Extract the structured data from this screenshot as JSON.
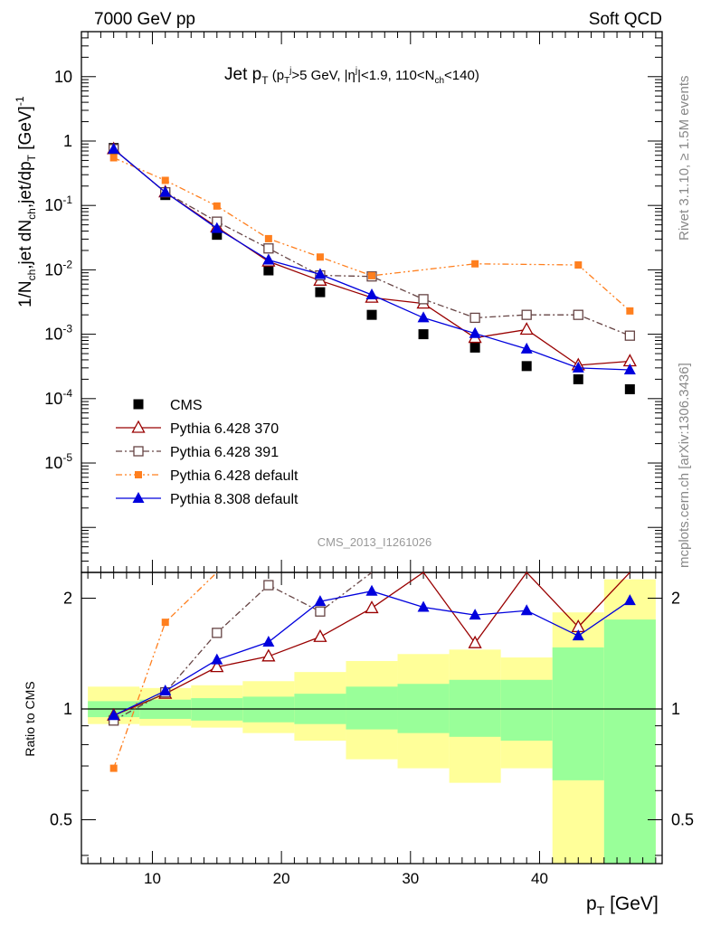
{
  "header": {
    "left": "7000 GeV pp",
    "right": "Soft QCD",
    "analysis_id": "CMS_2013_I1261026",
    "side_text_1": "Rivet 3.1.10, ≥ 1.5M events",
    "side_text_2": "mcplots.cern.ch [arXiv:1306.3436]"
  },
  "colors": {
    "cms": "#000000",
    "pythia6_370": "#990000",
    "pythia6_391": "#664444",
    "pythia6_default": "#ff7f1e",
    "pythia8_default": "#0000dd",
    "band_inner": "#99ff99",
    "band_outer": "#ffff99"
  },
  "chart_data": [
    {
      "type": "scatter",
      "panel": "main",
      "title": "Jet p_T (p_T^j > 5 GeV, |η^j| < 1.9, 110 < N_ch < 140)",
      "ylabel": "1/N_ch,jet dN_ch,jet/dp_T [GeV]^-1",
      "yscale": "log",
      "xlim": [
        4.5,
        49.5
      ],
      "ylim": [
        2e-07,
        50
      ],
      "y_tick_labels": [
        "10",
        "1",
        "10^-1",
        "10^-2",
        "10^-3",
        "10^-4",
        "10^-5"
      ],
      "legend_position": "lower-left",
      "x": [
        7,
        11,
        15,
        19,
        23,
        27,
        31,
        35,
        39,
        43,
        47
      ],
      "series": [
        {
          "name": "CMS",
          "key": "cms",
          "marker": "filled-square",
          "line": "none",
          "values": [
            0.78,
            0.145,
            0.035,
            0.0098,
            0.0045,
            0.002,
            0.001,
            0.00062,
            0.00032,
            0.0002,
            0.00014
          ]
        },
        {
          "name": "Pythia 6.428 370",
          "key": "pythia6_370",
          "marker": "open-triangle",
          "line": "solid",
          "values": [
            0.75,
            0.16,
            0.046,
            0.0135,
            0.0068,
            0.0037,
            0.003,
            0.00088,
            0.00118,
            0.00033,
            0.00038
          ]
        },
        {
          "name": "Pythia 6.428 391",
          "key": "pythia6_391",
          "marker": "open-square",
          "line": "dashdot",
          "values": [
            0.75,
            0.16,
            0.056,
            0.0215,
            0.0082,
            0.0079,
            0.0035,
            0.0018,
            0.002,
            0.002,
            0.00095
          ]
        },
        {
          "name": "Pythia 6.428 default",
          "key": "pythia6_default",
          "marker": "small-filled-square",
          "line": "dashdotdot",
          "values": [
            0.55,
            0.245,
            0.098,
            0.0305,
            0.0158,
            0.0081,
            null,
            0.0124,
            null,
            0.0119,
            0.0023
          ]
        },
        {
          "name": "Pythia 8.308 default",
          "key": "pythia8_default",
          "marker": "filled-triangle",
          "line": "solid",
          "values": [
            0.75,
            0.16,
            0.044,
            0.0142,
            0.0085,
            0.0041,
            0.0018,
            0.00103,
            0.00059,
            0.0003,
            0.00028
          ]
        }
      ]
    },
    {
      "type": "line",
      "panel": "ratio",
      "xlabel": "p_T [GeV]",
      "ylabel": "Ratio to CMS",
      "yscale": "log",
      "xlim": [
        4.5,
        49.5
      ],
      "ylim": [
        0.38,
        2.35
      ],
      "x_tick_labels": [
        "10",
        "20",
        "30",
        "40"
      ],
      "y_tick_labels": [
        "0.5",
        "1",
        "2"
      ],
      "bins": [
        [
          5,
          9
        ],
        [
          9,
          13
        ],
        [
          13,
          17
        ],
        [
          17,
          21
        ],
        [
          21,
          25
        ],
        [
          25,
          29
        ],
        [
          29,
          33
        ],
        [
          33,
          37
        ],
        [
          37,
          41
        ],
        [
          41,
          45
        ],
        [
          45,
          49
        ]
      ],
      "band_inner": [
        [
          0.95,
          1.05
        ],
        [
          0.94,
          1.06
        ],
        [
          0.93,
          1.07
        ],
        [
          0.92,
          1.08
        ],
        [
          0.91,
          1.1
        ],
        [
          0.88,
          1.15
        ],
        [
          0.86,
          1.17
        ],
        [
          0.84,
          1.2
        ],
        [
          0.82,
          1.2
        ],
        [
          0.64,
          1.47
        ],
        [
          0.3,
          1.75
        ]
      ],
      "band_outer": [
        [
          0.91,
          1.15
        ],
        [
          0.9,
          1.14
        ],
        [
          0.89,
          1.16
        ],
        [
          0.86,
          1.19
        ],
        [
          0.82,
          1.26
        ],
        [
          0.73,
          1.35
        ],
        [
          0.69,
          1.41
        ],
        [
          0.63,
          1.45
        ],
        [
          0.69,
          1.38
        ],
        [
          0.3,
          1.83
        ],
        [
          0.3,
          2.25
        ]
      ],
      "reference_line": 1,
      "series": [
        {
          "name": "Pythia 6.428 370",
          "key": "pythia6_370",
          "values": [
            0.96,
            1.1,
            1.3,
            1.39,
            1.57,
            1.88,
            2.8,
            1.51,
            2.8,
            1.67,
            2.9
          ]
        },
        {
          "name": "Pythia 6.428 391",
          "key": "pythia6_391",
          "values": [
            0.93,
            1.11,
            1.61,
            2.17,
            1.84,
            3.0,
            null,
            null,
            null,
            null,
            null
          ]
        },
        {
          "name": "Pythia 6.428 default",
          "key": "pythia6_default",
          "values": [
            0.69,
            1.72,
            3.0,
            null,
            null,
            null,
            null,
            null,
            null,
            null,
            null
          ]
        },
        {
          "name": "Pythia 8.308 default",
          "key": "pythia8_default",
          "values": [
            0.96,
            1.12,
            1.36,
            1.52,
            1.96,
            2.09,
            1.89,
            1.8,
            1.85,
            1.58,
            1.97
          ]
        }
      ]
    }
  ]
}
